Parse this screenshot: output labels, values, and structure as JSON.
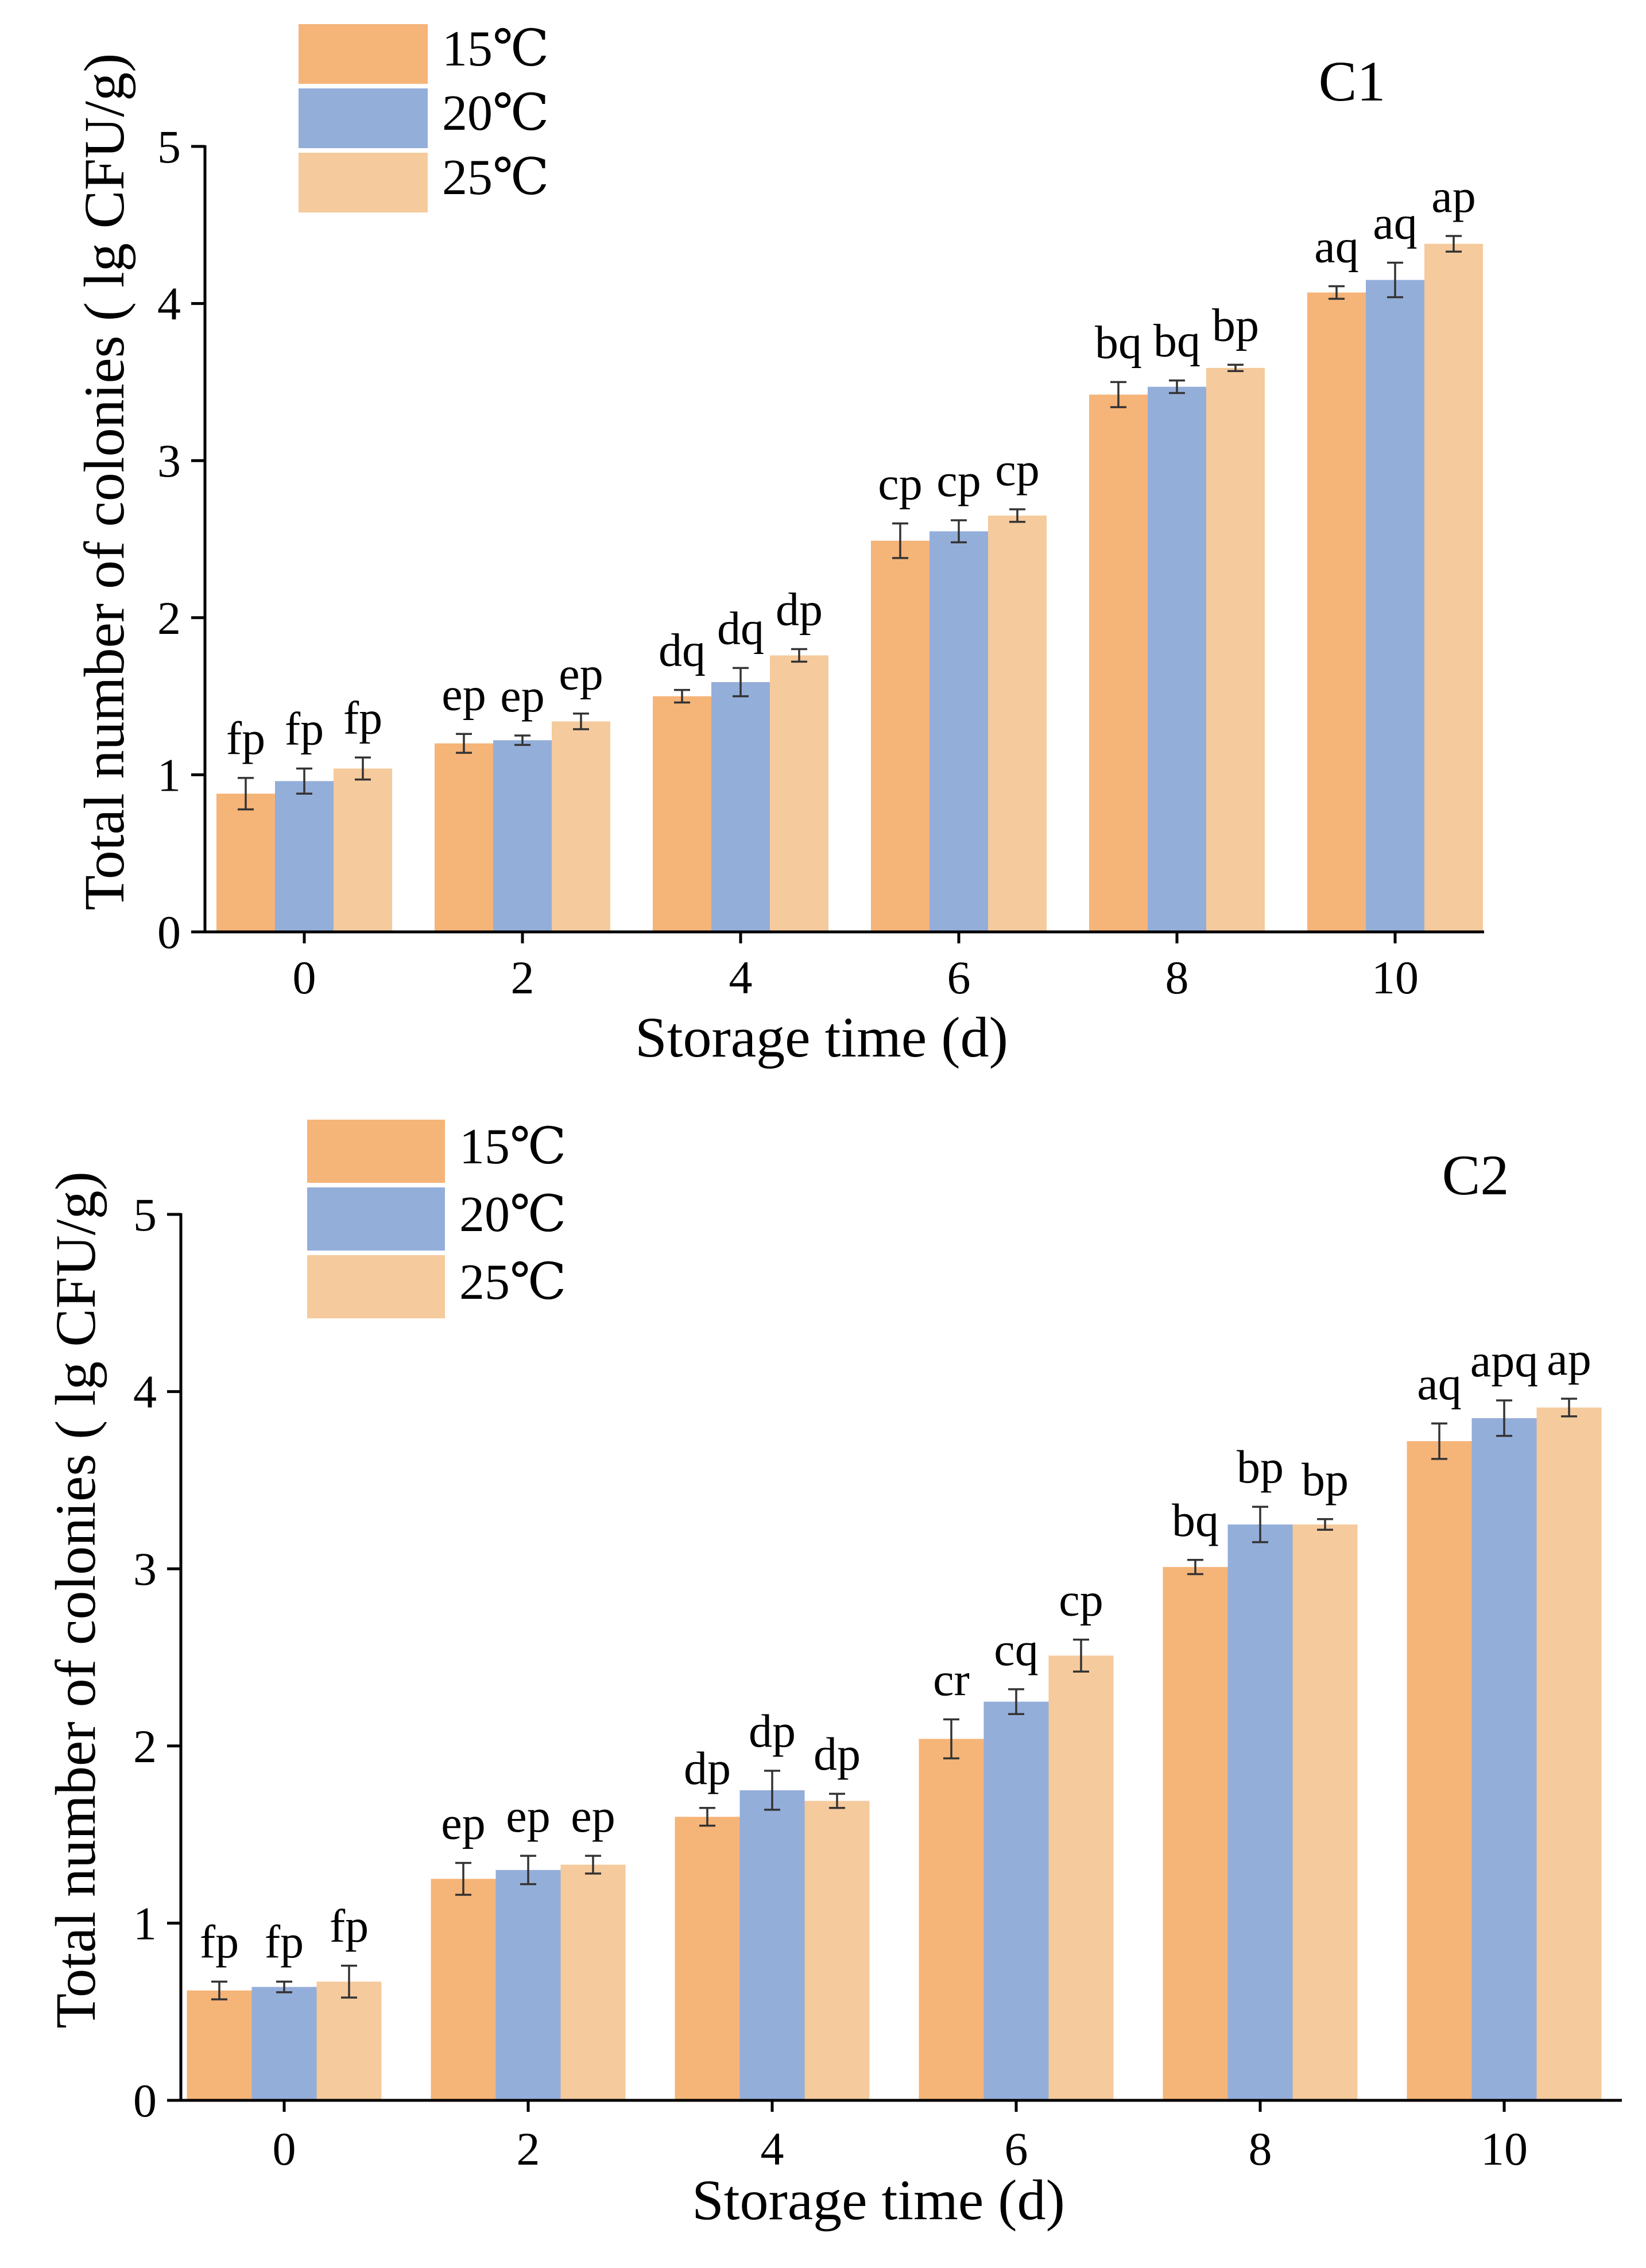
{
  "chart_data": [
    {
      "type": "bar",
      "title": "C1",
      "xlabel": "Storage time (d)",
      "ylabel": "Total number of colonies ( lg CFU/g)",
      "ylim": [
        0,
        5
      ],
      "yticks": [
        0,
        1,
        2,
        3,
        4,
        5
      ],
      "categories": [
        "0",
        "2",
        "4",
        "6",
        "8",
        "10"
      ],
      "legend_placement": "top-left",
      "series": [
        {
          "name": "15℃",
          "color": "#F5B478",
          "values": [
            0.88,
            1.2,
            1.5,
            2.49,
            3.42,
            4.07
          ],
          "errors": [
            0.1,
            0.06,
            0.04,
            0.11,
            0.08,
            0.04
          ],
          "labels": [
            "fp",
            "ep",
            "dq",
            "cp",
            "bq",
            "aq"
          ]
        },
        {
          "name": "20℃",
          "color": "#94AEDA",
          "values": [
            0.96,
            1.22,
            1.59,
            2.55,
            3.47,
            4.15
          ],
          "errors": [
            0.08,
            0.03,
            0.09,
            0.07,
            0.04,
            0.11
          ],
          "labels": [
            "fp",
            "ep",
            "dq",
            "cp",
            "bq",
            "aq"
          ]
        },
        {
          "name": "25℃",
          "color": "#F5CA9C",
          "values": [
            1.04,
            1.34,
            1.76,
            2.65,
            3.59,
            4.38
          ],
          "errors": [
            0.07,
            0.05,
            0.04,
            0.04,
            0.02,
            0.05
          ],
          "labels": [
            "fp",
            "ep",
            "dp",
            "cp",
            "bp",
            "ap"
          ]
        }
      ]
    },
    {
      "type": "bar",
      "title": "C2",
      "xlabel": "Storage time (d)",
      "ylabel": "Total number of colonies ( lg CFU/g)",
      "ylim": [
        0,
        5
      ],
      "yticks": [
        0,
        1,
        2,
        3,
        4,
        5
      ],
      "categories": [
        "0",
        "2",
        "4",
        "6",
        "8",
        "10"
      ],
      "legend_placement": "top-left",
      "series": [
        {
          "name": "15℃",
          "color": "#F5B478",
          "values": [
            0.62,
            1.25,
            1.6,
            2.04,
            3.01,
            3.72
          ],
          "errors": [
            0.05,
            0.09,
            0.05,
            0.11,
            0.04,
            0.1
          ],
          "labels": [
            "fp",
            "ep",
            "dp",
            "cr",
            "bq",
            "aq"
          ]
        },
        {
          "name": "20℃",
          "color": "#94AEDA",
          "values": [
            0.64,
            1.3,
            1.75,
            2.25,
            3.25,
            3.85
          ],
          "errors": [
            0.03,
            0.08,
            0.11,
            0.07,
            0.1,
            0.1
          ],
          "labels": [
            "fp",
            "ep",
            "dp",
            "cq",
            "bp",
            "apq"
          ]
        },
        {
          "name": "25℃",
          "color": "#F5CA9C",
          "values": [
            0.67,
            1.33,
            1.69,
            2.51,
            3.25,
            3.91
          ],
          "errors": [
            0.09,
            0.05,
            0.04,
            0.09,
            0.03,
            0.05
          ],
          "labels": [
            "fp",
            "ep",
            "dp",
            "cp",
            "bp",
            "ap"
          ]
        }
      ]
    }
  ]
}
